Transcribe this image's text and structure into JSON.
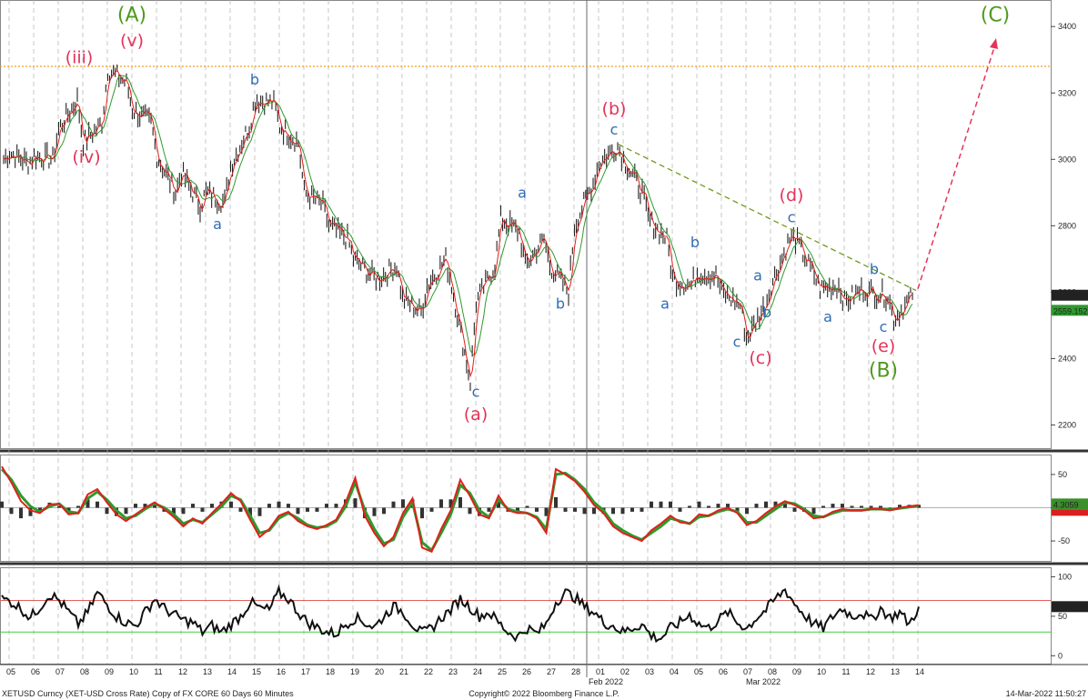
{
  "footer": {
    "left": "XETUSD Curncy (XET-USD Cross Rate) Copy of FX CORE 60 Days 60 Minutes",
    "center": "Copyright© 2022 Bloomberg Finance L.P.",
    "right": "14-Mar-2022 11:50:27"
  },
  "colors": {
    "price": "#222222",
    "ma_fast": "#e0201b",
    "ma_slow": "#2e9a2e",
    "wave_major": "#4e9a1e",
    "wave_red": "#e5335a",
    "wave_blue": "#2f6db5",
    "resistance": "#f0a020",
    "trendline": "#6f9a1e",
    "projection": "#e5335a",
    "badge_green": "#3a8f2a",
    "badge_red": "#d91f1f"
  },
  "chart_data": [
    {
      "type": "line",
      "panel": "price",
      "x_labels": [
        "05",
        "06",
        "07",
        "08",
        "09",
        "10",
        "11",
        "12",
        "13",
        "14",
        "15",
        "16",
        "17",
        "18",
        "19",
        "20",
        "21",
        "22",
        "23",
        "24",
        "25",
        "26",
        "27",
        "28",
        "01",
        "02",
        "03",
        "04",
        "05",
        "06",
        "07",
        "08",
        "09",
        "10",
        "11",
        "12",
        "13",
        "14"
      ],
      "month_labels": [
        {
          "label": "Feb 2022",
          "at": "01"
        },
        {
          "label": "Mar 2022",
          "at": "01"
        }
      ],
      "y_ticks": [
        2200,
        2400,
        2600,
        2800,
        3000,
        3200,
        3400
      ],
      "ylim": [
        2130,
        3480
      ],
      "last_price": "2588.025",
      "ma_value": "2559.152",
      "resistance_level": 3280,
      "path": [
        [
          "05",
          3000
        ],
        [
          "05",
          3020
        ],
        [
          "06",
          2990
        ],
        [
          "06",
          3010
        ],
        [
          "07",
          3000
        ],
        [
          "07",
          3090
        ],
        [
          "08",
          3180
        ],
        [
          "08",
          3050
        ],
        [
          "09",
          3110
        ],
        [
          "09",
          3270
        ],
        [
          "10",
          3230
        ],
        [
          "10",
          3150
        ],
        [
          "11",
          3110
        ],
        [
          "11",
          3010
        ],
        [
          "12",
          2900
        ],
        [
          "12",
          2960
        ],
        [
          "13",
          2860
        ],
        [
          "13",
          2900
        ],
        [
          "14",
          2870
        ],
        [
          "14",
          2980
        ],
        [
          "15",
          3100
        ],
        [
          "15",
          3180
        ],
        [
          "16",
          3170
        ],
        [
          "16",
          3100
        ],
        [
          "17",
          3050
        ],
        [
          "17",
          2900
        ],
        [
          "18",
          2860
        ],
        [
          "18",
          2800
        ],
        [
          "19",
          2760
        ],
        [
          "19",
          2700
        ],
        [
          "20",
          2650
        ],
        [
          "20",
          2640
        ],
        [
          "21",
          2680
        ],
        [
          "21",
          2580
        ],
        [
          "22",
          2540
        ],
        [
          "22",
          2620
        ],
        [
          "23",
          2700
        ],
        [
          "23",
          2620
        ],
        [
          "24",
          2330
        ],
        [
          "24",
          2570
        ],
        [
          "25",
          2680
        ],
        [
          "25",
          2820
        ],
        [
          "26",
          2780
        ],
        [
          "26",
          2680
        ],
        [
          "27",
          2760
        ],
        [
          "27",
          2680
        ],
        [
          "28",
          2600
        ],
        [
          "28",
          2800
        ],
        [
          "01",
          2930
        ],
        [
          "01",
          2990
        ],
        [
          "02",
          3040
        ],
        [
          "02",
          3000
        ],
        [
          "03",
          2900
        ],
        [
          "03",
          2820
        ],
        [
          "04",
          2760
        ],
        [
          "04",
          2640
        ],
        [
          "05",
          2620
        ],
        [
          "05",
          2660
        ],
        [
          "06",
          2650
        ],
        [
          "06",
          2600
        ],
        [
          "07",
          2560
        ],
        [
          "07",
          2460
        ],
        [
          "08",
          2560
        ],
        [
          "08",
          2620
        ],
        [
          "09",
          2760
        ],
        [
          "09",
          2760
        ],
        [
          "10",
          2650
        ],
        [
          "10",
          2610
        ],
        [
          "11",
          2620
        ],
        [
          "11",
          2570
        ],
        [
          "12",
          2610
        ],
        [
          "12",
          2600
        ],
        [
          "13",
          2590
        ],
        [
          "13",
          2520
        ],
        [
          "14",
          2588
        ]
      ],
      "annotations": [
        {
          "text": "(A)",
          "at": "10",
          "y": 3415,
          "style": "major"
        },
        {
          "text": "(v)",
          "at": "10",
          "y": 3340,
          "style": "red"
        },
        {
          "text": "(iii)",
          "at": "08",
          "y": 3290,
          "style": "red"
        },
        {
          "text": "(iv)",
          "at": "08",
          "y": 2990,
          "style": "red"
        },
        {
          "text": "b",
          "at": "15",
          "y": 3225,
          "style": "blue"
        },
        {
          "text": "a",
          "at": "14",
          "y": 2790,
          "style": "blue"
        },
        {
          "text": "c",
          "at": "24",
          "y": 2285,
          "style": "blue"
        },
        {
          "text": "(a)",
          "at": "24",
          "y": 2215,
          "style": "red"
        },
        {
          "text": "a",
          "at": "26",
          "y": 2885,
          "style": "blue"
        },
        {
          "text": "b",
          "at": "28",
          "y": 2550,
          "style": "blue"
        },
        {
          "text": "(b)",
          "at": "02",
          "y": 3135,
          "style": "red"
        },
        {
          "text": "c",
          "at": "02",
          "y": 3075,
          "style": "blue"
        },
        {
          "text": "a",
          "at": "04",
          "y": 2550,
          "style": "blue"
        },
        {
          "text": "b",
          "at": "05",
          "y": 2735,
          "style": "blue"
        },
        {
          "text": "c",
          "at": "07",
          "y": 2435,
          "style": "blue"
        },
        {
          "text": "(c)",
          "at": "08",
          "y": 2385,
          "style": "red"
        },
        {
          "text": "a",
          "at": "08",
          "y": 2635,
          "style": "blue"
        },
        {
          "text": "b",
          "at": "08",
          "y": 2525,
          "style": "blue"
        },
        {
          "text": "(d)",
          "at": "09",
          "y": 2875,
          "style": "red"
        },
        {
          "text": "c",
          "at": "09",
          "y": 2810,
          "style": "blue"
        },
        {
          "text": "a",
          "at": "11",
          "y": 2510,
          "style": "blue"
        },
        {
          "text": "b",
          "at": "13",
          "y": 2655,
          "style": "blue"
        },
        {
          "text": "c",
          "at": "13",
          "y": 2480,
          "style": "blue"
        },
        {
          "text": "(e)",
          "at": "13",
          "y": 2420,
          "style": "red"
        },
        {
          "text": "(B)",
          "at": "13",
          "y": 2345,
          "style": "major"
        },
        {
          "text": "(C)",
          "at": "14",
          "y": 3415,
          "style": "major"
        }
      ]
    },
    {
      "type": "line",
      "panel": "oscillator",
      "y_ticks": [
        50,
        0,
        -50
      ],
      "ylim": [
        -80,
        80
      ],
      "last_value": "4.3059",
      "series_fast": [
        62,
        38,
        10,
        -4,
        -8,
        5,
        6,
        -10,
        -8,
        20,
        28,
        8,
        -10,
        -20,
        -10,
        0,
        8,
        -2,
        -14,
        -28,
        -16,
        -24,
        -8,
        6,
        22,
        10,
        -18,
        -44,
        -32,
        -12,
        -6,
        -20,
        -28,
        -32,
        -26,
        -18,
        8,
        45,
        -12,
        -38,
        -58,
        -44,
        -8,
        14,
        -60,
        -66,
        -32,
        -4,
        42,
        18,
        -10,
        -16,
        18,
        -4,
        -8,
        -8,
        -16,
        -38,
        58,
        50,
        40,
        24,
        4,
        -8,
        -28,
        -38,
        -44,
        -50,
        -34,
        -24,
        -12,
        -22,
        -24,
        -10,
        -12,
        -4,
        0,
        -8,
        -26,
        -20,
        -8,
        2,
        10,
        4,
        -4,
        -16,
        -14,
        -6,
        -2,
        -4,
        -4,
        -2,
        -2,
        -4,
        0,
        2,
        4
      ],
      "series_slow": [
        58,
        42,
        18,
        2,
        -6,
        2,
        6,
        -6,
        -8,
        14,
        24,
        12,
        -4,
        -16,
        -12,
        -2,
        6,
        0,
        -10,
        -24,
        -18,
        -22,
        -10,
        2,
        18,
        12,
        -12,
        -38,
        -34,
        -16,
        -8,
        -16,
        -26,
        -30,
        -28,
        -20,
        2,
        38,
        -4,
        -32,
        -54,
        -48,
        -14,
        8,
        -52,
        -64,
        -38,
        -10,
        34,
        22,
        -4,
        -14,
        12,
        -2,
        -6,
        -8,
        -14,
        -32,
        50,
        52,
        42,
        28,
        8,
        -4,
        -24,
        -34,
        -42,
        -48,
        -38,
        -28,
        -16,
        -20,
        -24,
        -14,
        -12,
        -6,
        -2,
        -6,
        -22,
        -22,
        -12,
        -2,
        8,
        6,
        -2,
        -12,
        -14,
        -8,
        -4,
        -4,
        -4,
        -2,
        -2,
        -3,
        -1,
        1,
        3
      ]
    },
    {
      "type": "line",
      "panel": "rsi",
      "y_ticks": [
        100,
        50,
        0
      ],
      "ylim": [
        -10,
        112
      ],
      "upper_band": 70,
      "lower_band": 30,
      "last_value": "61.1744",
      "series": [
        72,
        68,
        60,
        48,
        62,
        78,
        70,
        55,
        40,
        55,
        80,
        65,
        50,
        42,
        38,
        55,
        72,
        60,
        52,
        45,
        42,
        30,
        38,
        30,
        40,
        50,
        68,
        60,
        58,
        80,
        72,
        56,
        42,
        36,
        30,
        28,
        40,
        48,
        42,
        36,
        50,
        62,
        56,
        40,
        28,
        35,
        48,
        58,
        72,
        62,
        50,
        55,
        42,
        30,
        24,
        35,
        28,
        40,
        68,
        80,
        74,
        62,
        55,
        42,
        38,
        30,
        35,
        40,
        25,
        22,
        35,
        42,
        52,
        40,
        35,
        45,
        55,
        42,
        35,
        48,
        58,
        72,
        84,
        66,
        52,
        40,
        35,
        50,
        60,
        50,
        55,
        45,
        60,
        48,
        55,
        40,
        62
      ]
    }
  ]
}
